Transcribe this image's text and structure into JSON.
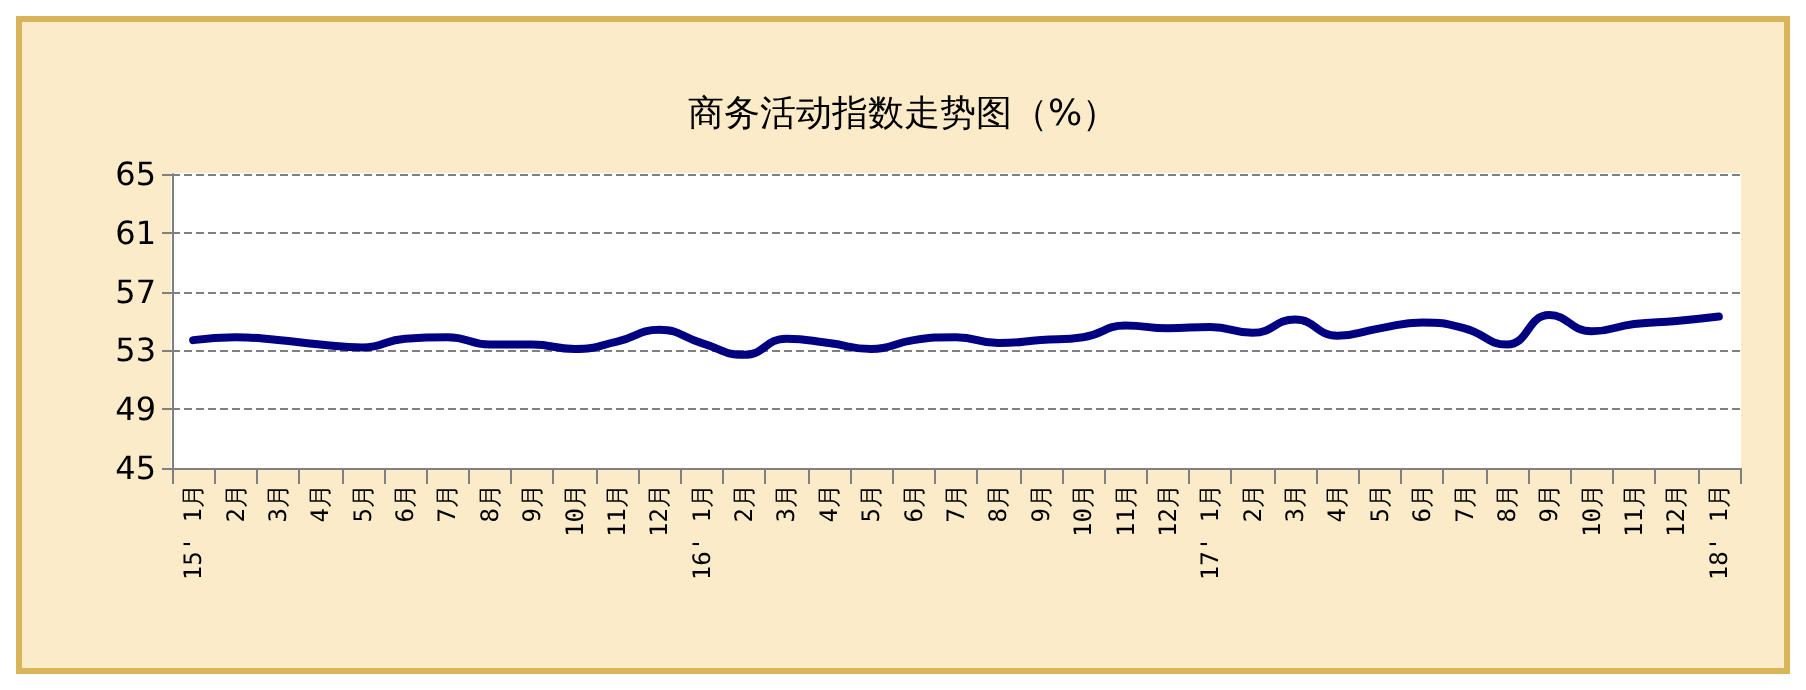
{
  "chart_data": {
    "type": "line",
    "title": "商务活动指数走势图（%）",
    "categories": [
      "15' 1月",
      "2月",
      "3月",
      "4月",
      "5月",
      "6月",
      "7月",
      "8月",
      "9月",
      "10月",
      "11月",
      "12月",
      "16' 1月",
      "2月",
      "3月",
      "4月",
      "5月",
      "6月",
      "7月",
      "8月",
      "9月",
      "10月",
      "11月",
      "12月",
      "17' 1月",
      "2月",
      "3月",
      "4月",
      "5月",
      "6月",
      "7月",
      "8月",
      "9月",
      "10月",
      "11月",
      "12月",
      "18' 1月"
    ],
    "series": [
      {
        "color": "#000080",
        "values": [
          53.7,
          53.9,
          53.7,
          53.4,
          53.2,
          53.8,
          53.9,
          53.4,
          53.4,
          53.1,
          53.6,
          54.4,
          53.5,
          52.7,
          53.8,
          53.5,
          53.1,
          53.7,
          53.9,
          53.5,
          53.7,
          53.9,
          54.7,
          54.5,
          54.6,
          54.2,
          55.1,
          54.0,
          54.5,
          54.9,
          54.5,
          53.4,
          55.4,
          54.3,
          54.8,
          55.0,
          55.3
        ]
      }
    ],
    "ylim": [
      45,
      65
    ],
    "yticks": [
      45,
      49,
      53,
      57,
      61,
      65
    ],
    "grid": "y",
    "marker": "none",
    "line_style": "solid"
  }
}
